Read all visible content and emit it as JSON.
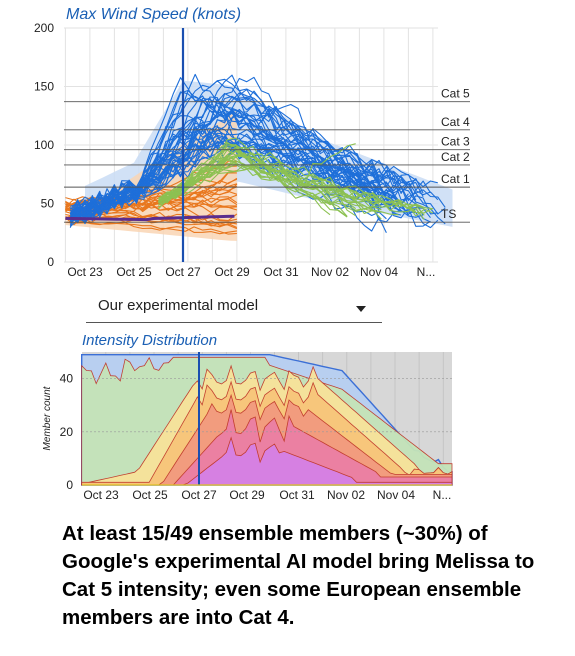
{
  "top_chart": {
    "title": "Max Wind Speed (knots)",
    "chart_data": {
      "type": "line",
      "title": "Max Wind Speed (knots)",
      "ylim": [
        0,
        200
      ],
      "y_ticks": [
        "0",
        "50",
        "100",
        "150",
        "200"
      ],
      "x_ticks": [
        "Oct 23",
        "Oct 25",
        "Oct 27",
        "Oct 29",
        "Oct 31",
        "Nov 02",
        "Nov 04",
        "N..."
      ],
      "category_thresholds": [
        {
          "label": "Cat 5",
          "value": 137
        },
        {
          "label": "Cat 4",
          "value": 113
        },
        {
          "label": "Cat 3",
          "value": 96
        },
        {
          "label": "Cat 2",
          "value": 83
        },
        {
          "label": "Cat 1",
          "value": 64
        },
        {
          "label": "TS",
          "value": 34
        }
      ],
      "current_time_marker": "Oct 27",
      "series": [
        {
          "group": "experimental-ai-ensemble",
          "color": "#1e6fd9"
        },
        {
          "group": "european-ensemble",
          "color": "#e8771e"
        },
        {
          "group": "other-ensemble",
          "color": "#8cc152"
        },
        {
          "group": "observed",
          "color": "#5b2d8e"
        }
      ]
    }
  },
  "dropdown": {
    "selected": "Our experimental model"
  },
  "bottom_chart": {
    "title": "Intensity Distribution",
    "chart_data": {
      "type": "area",
      "title": "Intensity Distribution",
      "ylabel": "Member count",
      "ylim": [
        0,
        50
      ],
      "y_ticks": [
        "0",
        "20",
        "40"
      ],
      "x_ticks": [
        "Oct 23",
        "Oct 25",
        "Oct 27",
        "Oct 29",
        "Oct 31",
        "Nov 02",
        "Nov 04",
        "N..."
      ],
      "current_time_marker": "Oct 27",
      "series": [
        {
          "name": "total",
          "color": "#3b6fd6"
        },
        {
          "name": "ts",
          "color": "#c5e4b8"
        },
        {
          "name": "cat1",
          "color": "#f7e39a"
        },
        {
          "name": "cat2",
          "color": "#f8c57a"
        },
        {
          "name": "cat3",
          "color": "#f29a7f"
        },
        {
          "name": "cat4",
          "color": "#eb7fa4"
        },
        {
          "name": "cat5",
          "color": "#d580e6"
        }
      ]
    }
  },
  "caption": "At least 15/49 ensemble members (~30%) of Google's experimental AI model bring Melissa to Cat 5 intensity; even some European ensemble members are into Cat 4."
}
